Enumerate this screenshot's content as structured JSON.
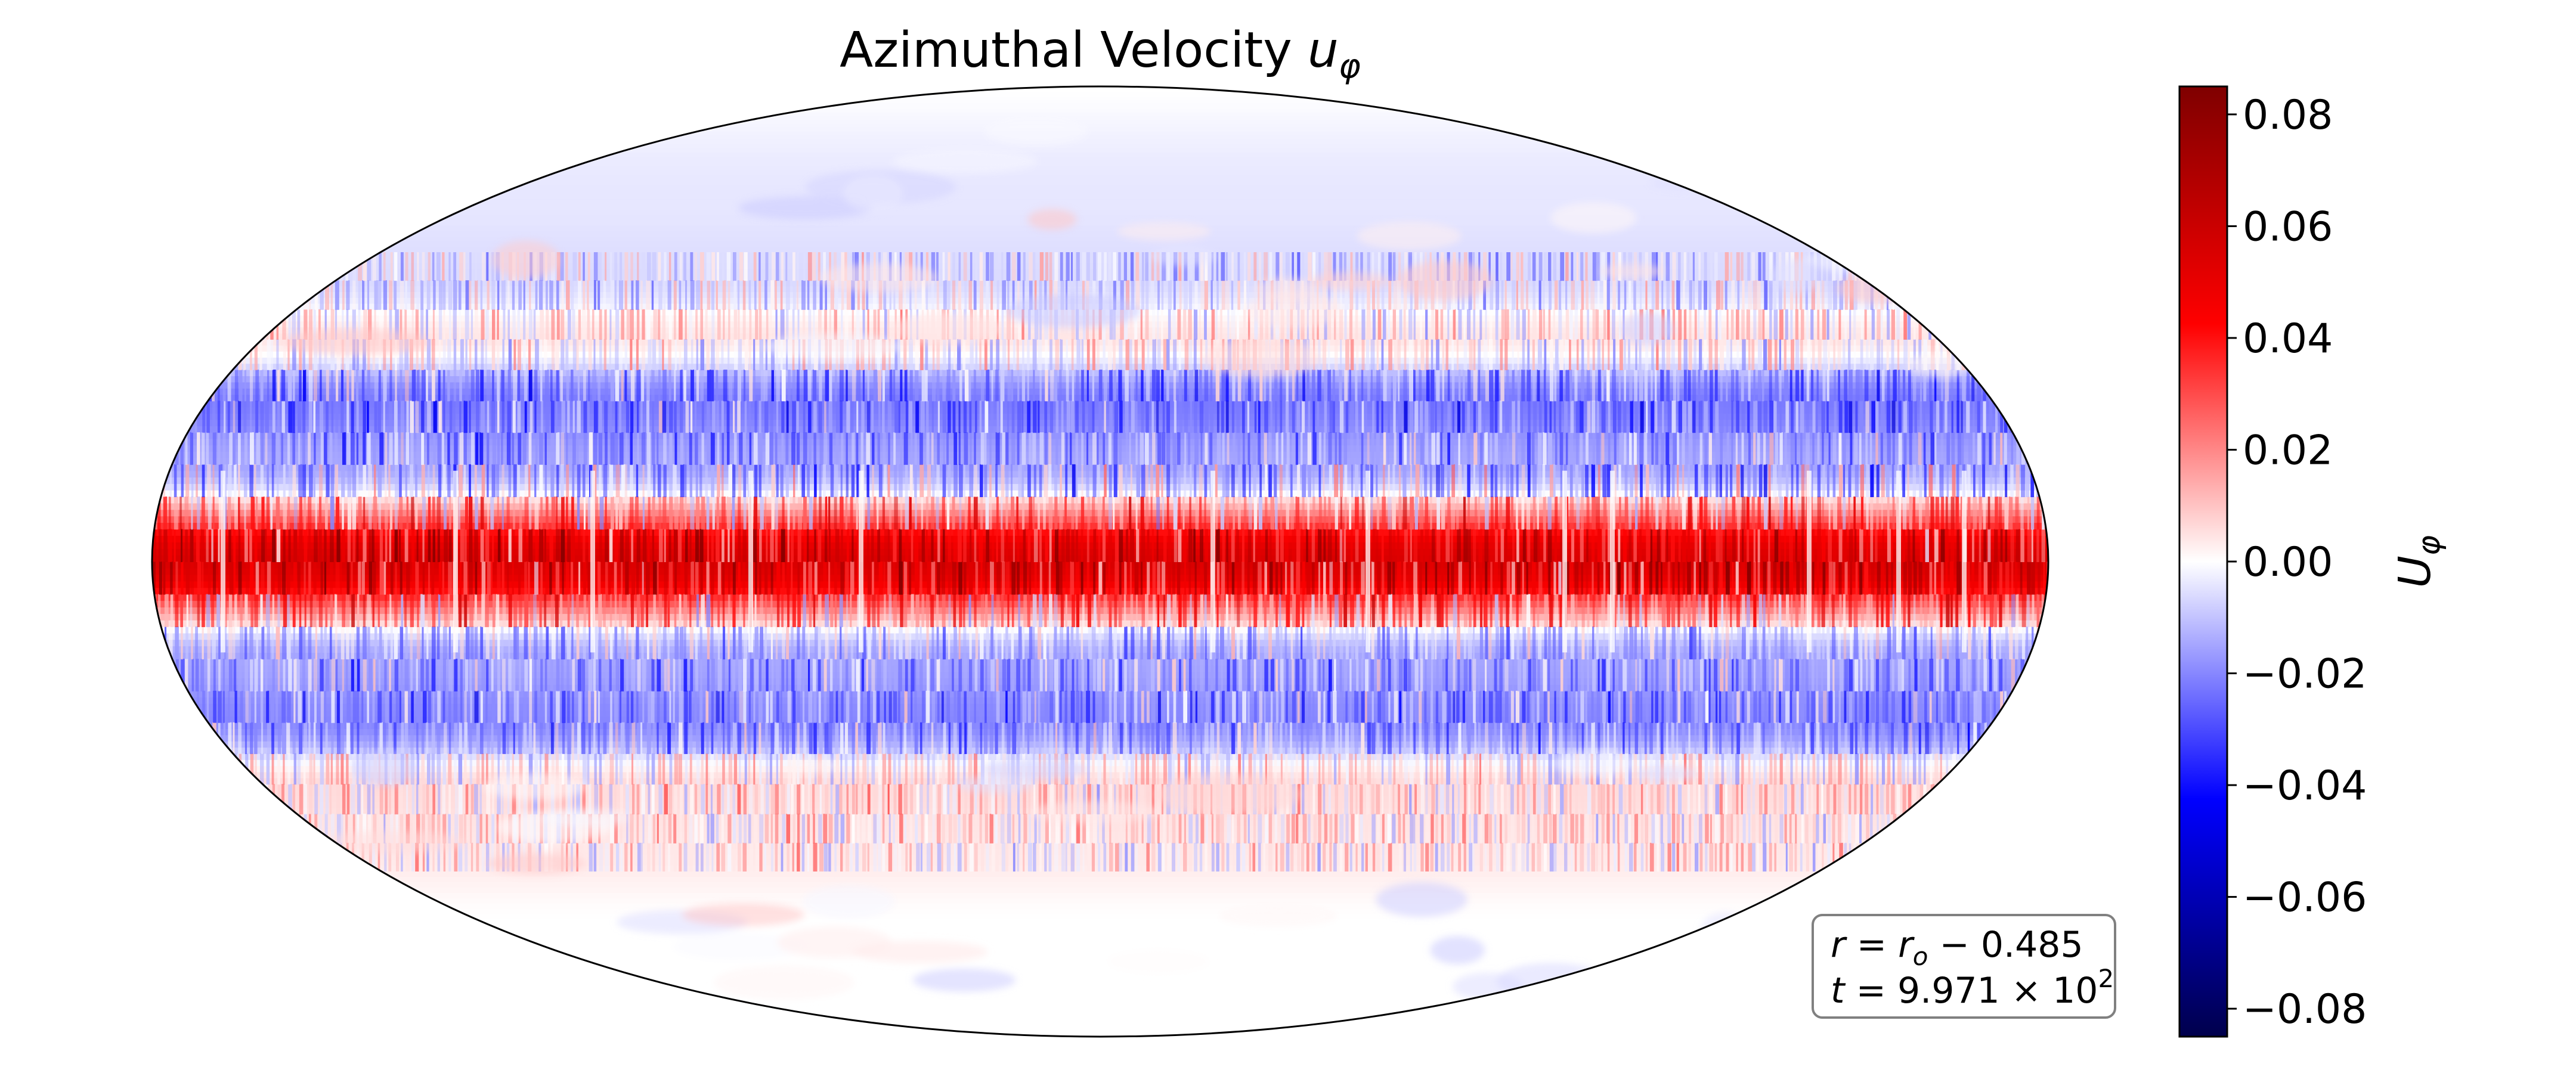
{
  "chart_data": {
    "type": "heatmap",
    "projection": "mollweide",
    "title": "Azimuthal Velocity u_φ",
    "title_main": "Azimuthal Velocity ",
    "title_var": "u",
    "title_sub": "φ",
    "colormap": "seismic",
    "colorbar": {
      "label": "U_φ",
      "label_main": "U",
      "label_sub": "φ",
      "vmin": -0.085,
      "vmax": 0.085,
      "ticks": [
        -0.08,
        -0.06,
        -0.04,
        -0.02,
        0.0,
        0.02,
        0.04,
        0.06,
        0.08
      ],
      "tick_labels": [
        "−0.08",
        "−0.06",
        "−0.04",
        "−0.02",
        "0.00",
        "0.02",
        "0.04",
        "0.06",
        "0.08"
      ],
      "colors": [
        "#00004c",
        "#0000ff",
        "#ffffff",
        "#ff0000",
        "#7f0000"
      ]
    },
    "field_profile": {
      "description_latitude_deg": [
        -90,
        -60,
        -45,
        -35,
        -25,
        -15,
        0,
        15,
        25,
        35,
        45,
        60,
        90
      ],
      "mean_value": [
        0.0,
        0.0,
        0.004,
        0.006,
        -0.02,
        -0.015,
        0.055,
        -0.015,
        -0.022,
        0.004,
        -0.006,
        -0.004,
        0.0
      ]
    },
    "annotation": {
      "line1": "r = r_o −  0.485",
      "line1_a": "r",
      "line1_b": " = ",
      "line1_c": "r",
      "line1_sub": "o",
      "line1_d": " −  0.485",
      "line2": "t = 9.971 × 10^2",
      "line2_a": "t",
      "line2_b": " = 9.971 × 10",
      "line2_sup": "2"
    }
  }
}
